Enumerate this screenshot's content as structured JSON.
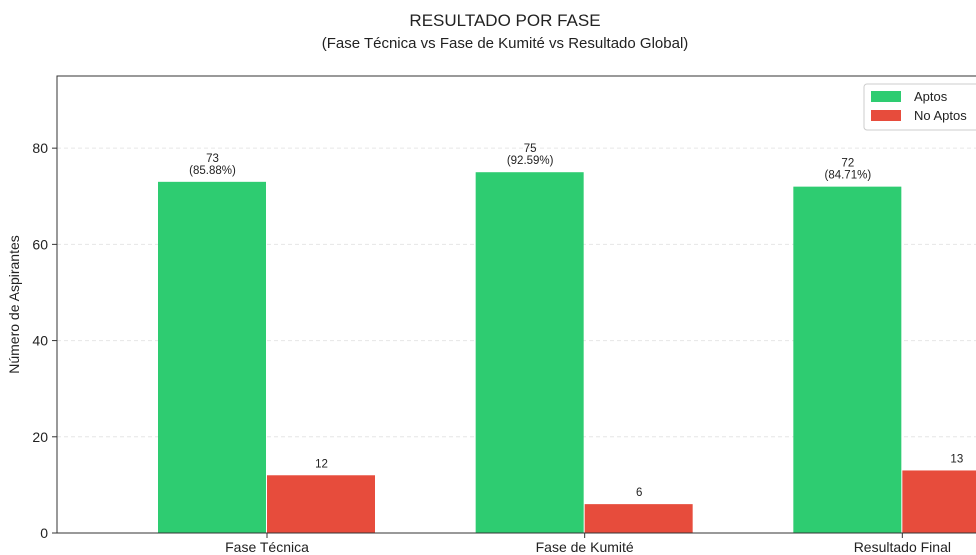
{
  "chart_data": {
    "type": "bar",
    "title": "RESULTADO POR FASE",
    "subtitle": "(Fase Técnica vs Fase de Kumité vs Resultado Global)",
    "ylabel": "Número de Aspirantes",
    "xlabel": "",
    "ylim": [
      0,
      95
    ],
    "yticks": [
      0,
      20,
      40,
      60,
      80
    ],
    "grid": true,
    "legend_position": "top-right",
    "categories": [
      "Fase Técnica",
      "Fase de Kumité",
      "Resultado Final"
    ],
    "series": [
      {
        "name": "Aptos",
        "color": "#2ecc71",
        "values": [
          73,
          75,
          72
        ],
        "labels": [
          [
            "73",
            "(85.88%)"
          ],
          [
            "75",
            "(92.59%)"
          ],
          [
            "72",
            "(84.71%)"
          ]
        ]
      },
      {
        "name": "No Aptos",
        "color": "#e74c3c",
        "values": [
          12,
          6,
          13
        ],
        "labels": [
          [
            "12"
          ],
          [
            "6"
          ],
          [
            "13"
          ]
        ]
      }
    ]
  }
}
